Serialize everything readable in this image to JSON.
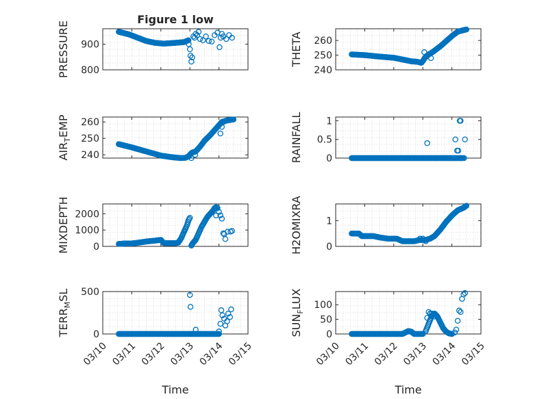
{
  "chart_data": [
    {
      "type": "scatter",
      "title": "Figure 1 low",
      "ylabel": "PRESSURE",
      "xlabel": "",
      "xlim": [
        0,
        5
      ],
      "ylim": [
        800,
        960
      ],
      "yticks": [
        800,
        900
      ],
      "xticks": [
        0,
        1,
        2,
        3,
        4,
        5
      ],
      "xticklabels": [
        "03/10",
        "03/11",
        "03/12",
        "03/13",
        "03/14",
        "03/15"
      ],
      "grid": true,
      "minor_grid": true,
      "series": [
        {
          "segments": [
            {
              "x": [
                0.55,
                0.9,
                1.2,
                1.5,
                1.8,
                2.1,
                2.5,
                2.8,
                2.95
              ],
              "y": [
                948,
                938,
                925,
                912,
                905,
                902,
                905,
                908,
                915
              ]
            }
          ],
          "points": {
            "x": [
              2.96,
              3.0,
              3.02,
              3.05,
              3.08,
              3.12,
              3.16,
              3.2,
              3.25,
              3.3,
              3.35,
              3.45,
              3.55,
              3.65,
              3.75,
              3.85,
              3.95,
              4.02,
              4.06,
              4.1,
              4.15,
              4.25,
              4.35,
              4.45
            ],
            "y": [
              900,
              880,
              855,
              832,
              848,
              930,
              925,
              940,
              935,
              948,
              920,
              915,
              930,
              912,
              910,
              935,
              945,
              888,
              925,
              940,
              930,
              920,
              935,
              925
            ]
          }
        }
      ]
    },
    {
      "type": "scatter",
      "title": "",
      "ylabel": "THETA",
      "xlabel": "",
      "xlim": [
        0,
        5
      ],
      "ylim": [
        240,
        268
      ],
      "yticks": [
        240,
        250,
        260
      ],
      "xticks": [
        0,
        1,
        2,
        3,
        4,
        5
      ],
      "xticklabels": [
        "03/10",
        "03/11",
        "03/12",
        "03/13",
        "03/14",
        "03/15"
      ],
      "grid": true,
      "minor_grid": true,
      "series": [
        {
          "segments": [
            {
              "x": [
                0.55,
                1.0,
                1.5,
                2.0,
                2.3,
                2.6,
                2.8,
                2.9,
                2.95,
                3.0,
                3.1,
                3.25,
                3.4,
                3.6,
                3.8,
                4.0,
                4.2,
                4.5
              ],
              "y": [
                250.5,
                250,
                249,
                248.2,
                247,
                245.8,
                245.5,
                245,
                244.8,
                246,
                249,
                251,
                253,
                256,
                259.5,
                263,
                266,
                267.5
              ]
            }
          ],
          "points": {
            "x": [
              3.05,
              3.12,
              3.2,
              3.28
            ],
            "y": [
              252,
              249,
              250.5,
              248
            ]
          }
        }
      ]
    },
    {
      "type": "scatter",
      "title": "",
      "ylabel": "AIR_TEMP",
      "xlabel": "",
      "xlim": [
        0,
        5
      ],
      "ylim": [
        238,
        263
      ],
      "yticks": [
        240,
        250,
        260
      ],
      "xticks": [
        0,
        1,
        2,
        3,
        4,
        5
      ],
      "xticklabels": [
        "03/10",
        "03/11",
        "03/12",
        "03/13",
        "03/14",
        "03/15"
      ],
      "grid": true,
      "minor_grid": true,
      "series": [
        {
          "segments": [
            {
              "x": [
                0.55,
                1.0,
                1.5,
                2.0,
                2.4,
                2.7,
                2.85,
                2.95,
                3.05,
                3.1,
                3.2,
                3.35,
                3.5,
                3.7,
                3.9,
                4.1,
                4.3,
                4.5
              ],
              "y": [
                246.5,
                244.5,
                242,
                239.5,
                238.5,
                238,
                238.2,
                239,
                241,
                241.5,
                242,
                245,
                248.5,
                252,
                256,
                260,
                261,
                261.5
              ]
            }
          ],
          "points": {
            "x": [
              3.0,
              3.05,
              3.1,
              3.18,
              3.25,
              4.05,
              4.1,
              4.15
            ],
            "y": [
              240,
              238,
              241.5,
              240,
              243,
              253,
              257,
              260
            ]
          }
        }
      ]
    },
    {
      "type": "scatter",
      "title": "",
      "ylabel": "RAINFALL",
      "xlabel": "",
      "xlim": [
        0,
        5
      ],
      "ylim": [
        0,
        1.1
      ],
      "yticks": [
        0,
        0.5,
        1
      ],
      "yticklabels": [
        "0",
        "0.5",
        "1"
      ],
      "xticks": [
        0,
        1,
        2,
        3,
        4,
        5
      ],
      "xticklabels": [
        "03/10",
        "03/11",
        "03/12",
        "03/13",
        "03/14",
        "03/15"
      ],
      "grid": true,
      "minor_grid": true,
      "series": [
        {
          "segments": [
            {
              "x": [
                0.55,
                4.35
              ],
              "y": [
                0,
                0
              ]
            }
          ],
          "points": {
            "x": [
              3.15,
              4.12,
              4.18,
              4.22,
              4.27,
              4.3,
              4.33,
              4.38,
              4.42,
              4.45
            ],
            "y": [
              0.4,
              0.5,
              0.2,
              0.2,
              1.0,
              1.0,
              0.0,
              0.0,
              0.0,
              0.5
            ]
          }
        }
      ]
    },
    {
      "type": "scatter",
      "title": "",
      "ylabel": "MIXDEPTH",
      "xlabel": "",
      "xlim": [
        0,
        5
      ],
      "ylim": [
        0,
        2600
      ],
      "yticks": [
        0,
        1000,
        2000
      ],
      "xticks": [
        0,
        1,
        2,
        3,
        4,
        5
      ],
      "xticklabels": [
        "03/10",
        "03/11",
        "03/12",
        "03/13",
        "03/14",
        "03/15"
      ],
      "grid": true,
      "minor_grid": true,
      "series": [
        {
          "segments": [
            {
              "x": [
                0.55,
                0.8,
                1.0,
                1.2,
                1.5,
                1.8,
                2.0,
                2.1,
                2.3,
                2.5,
                2.6
              ],
              "y": [
                150,
                180,
                180,
                220,
                300,
                350,
                400,
                200,
                200,
                200,
                230
              ]
            },
            {
              "x": [
                2.6,
                2.7,
                2.8,
                2.85,
                2.9,
                2.95,
                3.0
              ],
              "y": [
                230,
                500,
                900,
                1100,
                1300,
                1600,
                1750
              ]
            },
            {
              "x": [
                3.05,
                3.1,
                3.2,
                3.3,
                3.4,
                3.5,
                3.6,
                3.7,
                3.8,
                3.85,
                3.9,
                3.95
              ],
              "y": [
                50,
                200,
                400,
                800,
                1200,
                1500,
                1800,
                2000,
                2200,
                2350,
                2400,
                2350
              ]
            }
          ],
          "points": {
            "x": [
              3.9,
              4.0,
              4.05,
              4.1,
              4.15,
              4.18,
              4.22,
              4.3,
              4.4,
              4.45
            ],
            "y": [
              1900,
              2100,
              1900,
              1700,
              800,
              750,
              450,
              900,
              900,
              950
            ]
          }
        }
      ]
    },
    {
      "type": "scatter",
      "title": "",
      "ylabel": "H2OMIXRA",
      "xlabel": "",
      "xlim": [
        0,
        5
      ],
      "ylim": [
        0,
        1.65
      ],
      "yticks": [
        0,
        1
      ],
      "xticks": [
        0,
        1,
        2,
        3,
        4,
        5
      ],
      "xticklabels": [
        "03/10",
        "03/11",
        "03/12",
        "03/13",
        "03/14",
        "03/15"
      ],
      "grid": true,
      "minor_grid": true,
      "series": [
        {
          "segments": [
            {
              "x": [
                0.55,
                0.8,
                0.9,
                1.3,
                1.5,
                1.8,
                2.1,
                2.3,
                2.5,
                2.7,
                2.9,
                3.1,
                3.25,
                3.4,
                3.6,
                3.8,
                4.0,
                4.2,
                4.4,
                4.5
              ],
              "y": [
                0.5,
                0.5,
                0.4,
                0.4,
                0.35,
                0.3,
                0.3,
                0.2,
                0.2,
                0.2,
                0.25,
                0.25,
                0.3,
                0.4,
                0.65,
                0.95,
                1.2,
                1.4,
                1.5,
                1.58
              ]
            }
          ],
          "points": {
            "x": [
              2.9,
              3.0,
              3.1
            ],
            "y": [
              0.3,
              0.3,
              0.2
            ]
          }
        }
      ]
    },
    {
      "type": "scatter",
      "title": "",
      "ylabel": "TERR_MSL",
      "xlabel": "Time",
      "xlim": [
        0,
        5
      ],
      "ylim": [
        0,
        500
      ],
      "yticks": [
        0,
        500
      ],
      "xticks": [
        0,
        1,
        2,
        3,
        4,
        5
      ],
      "xticklabels": [
        "03/10",
        "03/11",
        "03/12",
        "03/13",
        "03/14",
        "03/15"
      ],
      "grid": true,
      "minor_grid": true,
      "series": [
        {
          "segments": [
            {
              "x": [
                0.55,
                4.0
              ],
              "y": [
                0,
                0
              ]
            }
          ],
          "points": {
            "x": [
              3.0,
              3.02,
              3.2,
              4.0,
              4.05,
              4.08,
              4.12,
              4.18,
              4.22,
              4.28,
              4.32,
              4.38,
              4.42
            ],
            "y": [
              460,
              320,
              50,
              30,
              120,
              280,
              220,
              180,
              100,
              150,
              240,
              200,
              290
            ]
          }
        }
      ]
    },
    {
      "type": "scatter",
      "title": "",
      "ylabel": "SUN_FLUX",
      "xlabel": "Time",
      "xlim": [
        0,
        5
      ],
      "ylim": [
        0,
        145
      ],
      "yticks": [
        0,
        50,
        100
      ],
      "xticks": [
        0,
        1,
        2,
        3,
        4,
        5
      ],
      "xticklabels": [
        "03/10",
        "03/11",
        "03/12",
        "03/13",
        "03/14",
        "03/15"
      ],
      "grid": true,
      "minor_grid": true,
      "series": [
        {
          "segments": [
            {
              "x": [
                0.55,
                2.3,
                2.4,
                2.5,
                2.6,
                2.7,
                3.0
              ],
              "y": [
                0,
                0,
                5,
                10,
                8,
                0,
                0
              ]
            },
            {
              "x": [
                3.1,
                3.2,
                3.3,
                3.4,
                3.5,
                3.6,
                3.7,
                3.8,
                3.9,
                4.0
              ],
              "y": [
                10,
                35,
                60,
                70,
                60,
                40,
                20,
                8,
                2,
                0
              ]
            }
          ],
          "points": {
            "x": [
              3.15,
              3.2,
              3.25,
              3.3,
              3.35,
              3.4,
              4.0,
              4.1,
              4.15,
              4.2,
              4.25,
              4.3,
              4.35,
              4.4,
              4.45
            ],
            "y": [
              55,
              75,
              70,
              70,
              65,
              60,
              0,
              5,
              15,
              45,
              80,
              75,
              120,
              135,
              140
            ]
          }
        }
      ]
    }
  ]
}
